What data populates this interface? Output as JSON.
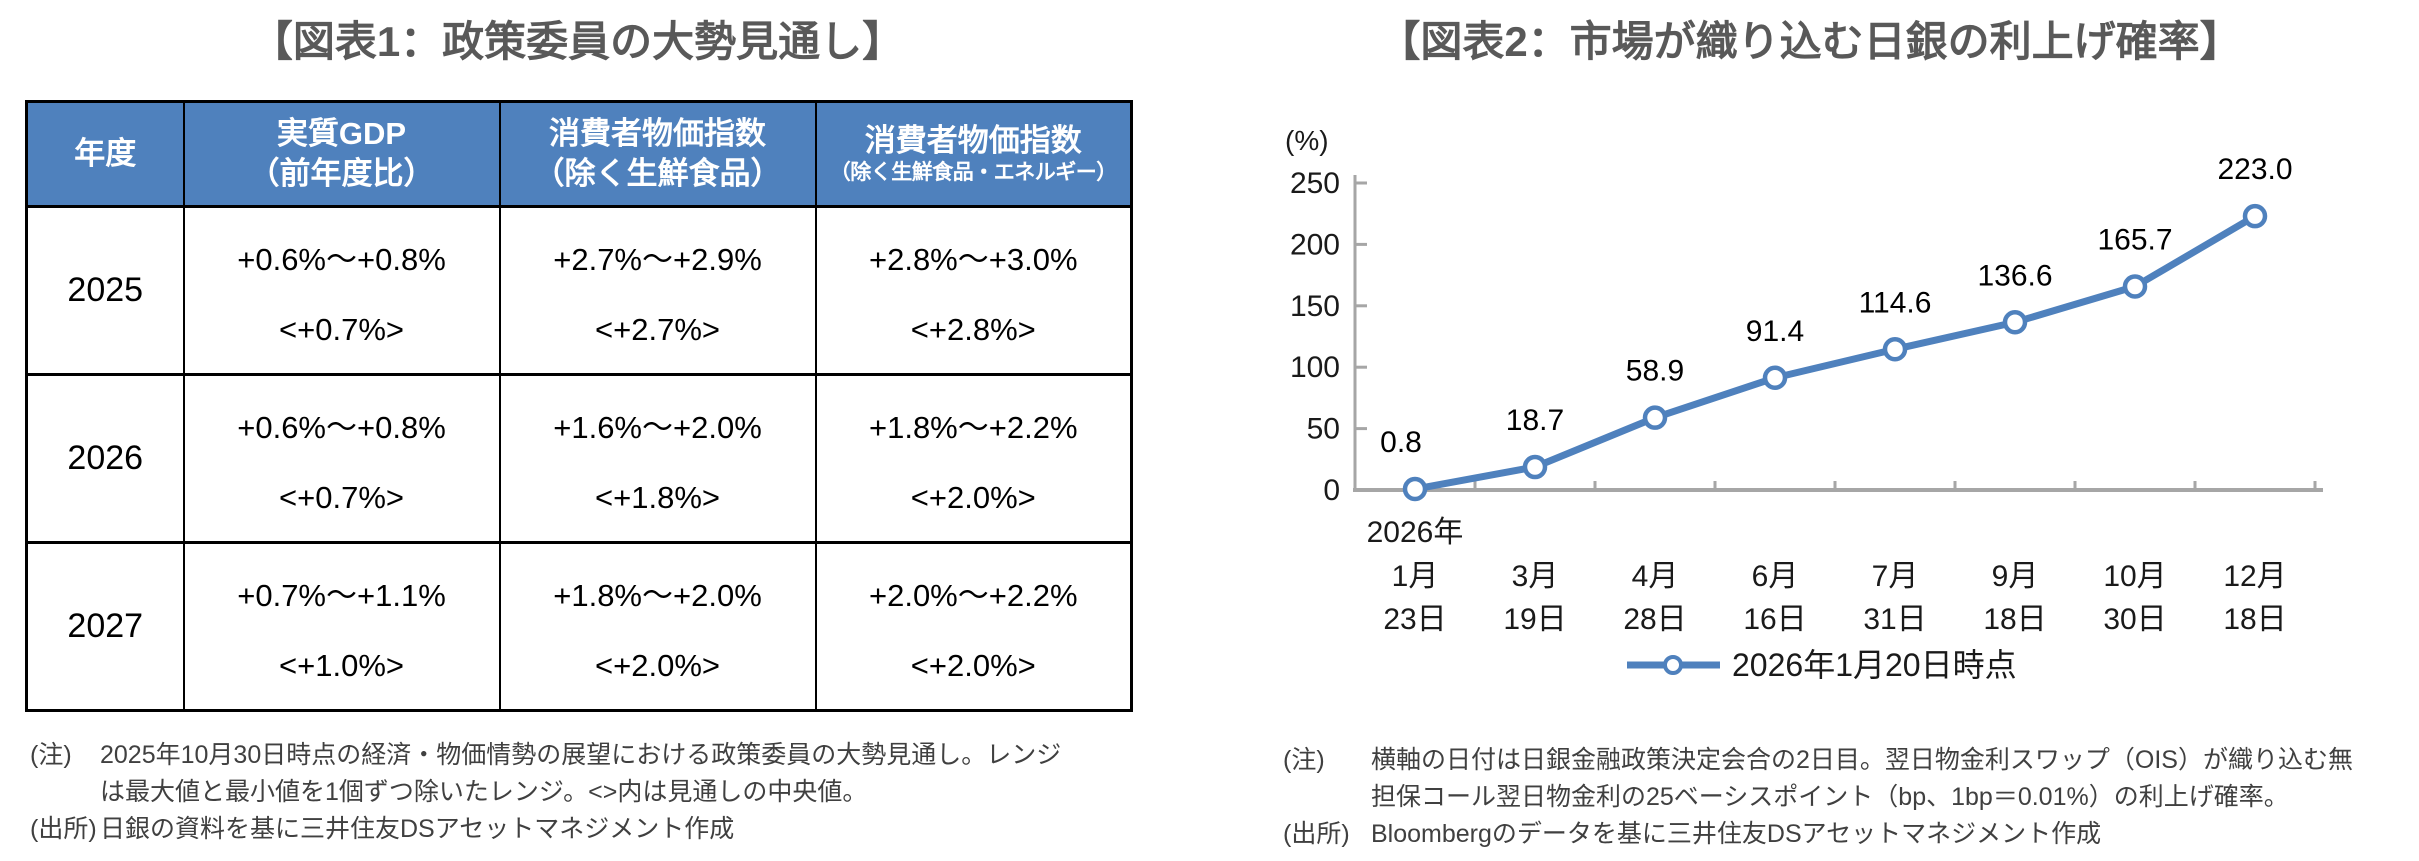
{
  "figure1": {
    "title": "【図表1：政策委員の大勢見通し】",
    "table": {
      "header_bg_color": "#4F81BD",
      "headers": [
        {
          "line1": "年度",
          "line2": ""
        },
        {
          "line1": "実質GDP",
          "line2": "（前年度比）"
        },
        {
          "line1": "消費者物価指数",
          "line2": "（除く生鮮食品）"
        },
        {
          "line1": "消費者物価指数",
          "line2": "（除く生鮮食品・エネルギー）"
        }
      ],
      "rows": [
        {
          "year": "2025",
          "cells": [
            {
              "range": "+0.6%～+0.8%",
              "median": "<+0.7%>"
            },
            {
              "range": "+2.7%～+2.9%",
              "median": "<+2.7%>"
            },
            {
              "range": "+2.8%～+3.0%",
              "median": "<+2.8%>"
            }
          ]
        },
        {
          "year": "2026",
          "cells": [
            {
              "range": "+0.6%～+0.8%",
              "median": "<+0.7%>"
            },
            {
              "range": "+1.6%～+2.0%",
              "median": "<+1.8%>"
            },
            {
              "range": "+1.8%～+2.2%",
              "median": "<+2.0%>"
            }
          ]
        },
        {
          "year": "2027",
          "cells": [
            {
              "range": "+0.7%～+1.1%",
              "median": "<+1.0%>"
            },
            {
              "range": "+1.8%～+2.0%",
              "median": "<+2.0%>"
            },
            {
              "range": "+2.0%～+2.2%",
              "median": "<+2.0%>"
            }
          ]
        }
      ]
    },
    "notes": {
      "note_label": "(注)",
      "note_lines": [
        "2025年10月30日時点の経済・物価情勢の展望における政策委員の大勢見通し。レンジ",
        "は最大値と最小値を1個ずつ除いたレンジ。<>内は見通しの中央値。"
      ],
      "source_label": "(出所)",
      "source_text": "日銀の資料を基に三井住友DSアセットマネジメント作成"
    }
  },
  "figure2": {
    "title": "【図表2：市場が織り込む日銀の利上げ確率】",
    "notes": {
      "note_label": "(注)",
      "note_lines": [
        "横軸の日付は日銀金融政策決定会合の2日目。翌日物金利スワップ（OIS）が織り込む無",
        "担保コール翌日物金利の25ベーシスポイント（bp、1bp＝0.01%）の利上げ確率。"
      ],
      "source_label": "(出所)",
      "source_text": "Bloombergのデータを基に三井住友DSアセットマネジメント作成"
    }
  },
  "chart_data": {
    "type": "line",
    "title": "市場が織り込む日銀の利上げ確率",
    "xlabel": "",
    "ylabel": "(%)",
    "ylim": [
      0,
      250
    ],
    "yticks": [
      0,
      50,
      100,
      150,
      200,
      250
    ],
    "grid": false,
    "legend_position": "bottom",
    "x_axis_year_label": "2026年",
    "categories_month": [
      "1月",
      "3月",
      "4月",
      "6月",
      "7月",
      "9月",
      "10月",
      "12月"
    ],
    "categories_day": [
      "23日",
      "19日",
      "28日",
      "16日",
      "31日",
      "18日",
      "30日",
      "18日"
    ],
    "series": [
      {
        "name": "2026年1月20日時点",
        "values": [
          0.8,
          18.7,
          58.9,
          91.4,
          114.6,
          136.6,
          165.7,
          223.0
        ]
      }
    ],
    "colors": {
      "line": "#4F81BD",
      "marker_fill": "#ffffff",
      "axis": "#A6A6A6"
    }
  }
}
